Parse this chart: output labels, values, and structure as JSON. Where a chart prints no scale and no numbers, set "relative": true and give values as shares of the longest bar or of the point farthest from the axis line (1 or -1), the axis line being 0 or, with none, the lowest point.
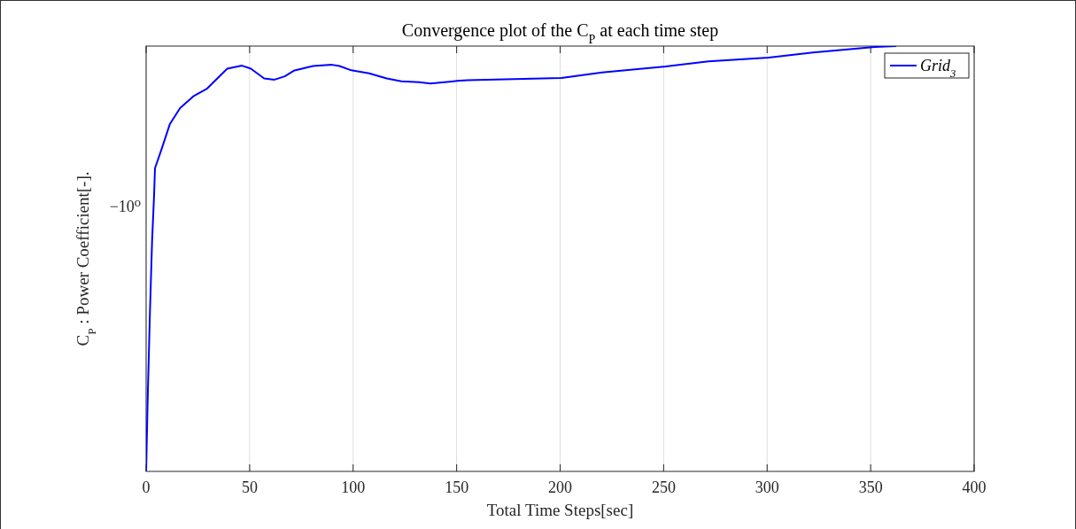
{
  "chart_data": {
    "type": "line",
    "title": "Convergence plot of the C$_{P}$ at each time step",
    "xlabel": "Total Time Steps[sec]",
    "ylabel": "C$_{P}$ : Power Coefficient[-].",
    "annotations": [
      "−10⁰"
    ],
    "relative": true,
    "xlim": [
      0,
      400
    ],
    "xticks": [
      0,
      50,
      100,
      150,
      200,
      250,
      300,
      350,
      400
    ],
    "grid": "x",
    "legend": "top right",
    "line_style": "solid",
    "marker": "none",
    "series": [
      {
        "name": "Grid$_{3}$",
        "color": "#0000ff",
        "x": [
          0,
          0.73,
          1.84,
          2.87,
          3.85,
          4.28,
          7.14,
          11.42,
          16.39,
          22.8,
          29.2,
          39.2,
          46.3,
          50.6,
          57.0,
          62.0,
          67.0,
          71.3,
          80.6,
          89.8,
          93.4,
          99.1,
          107.7,
          116.2,
          123.3,
          131.9,
          137.3,
          150.2,
          155.3,
          200.6,
          220.3,
          251.1,
          271.7,
          300.7,
          322.1,
          352.1,
          362.4
        ],
        "values": [
          0,
          0.165,
          0.373,
          0.54,
          0.65,
          0.713,
          0.753,
          0.816,
          0.854,
          0.882,
          0.899,
          0.947,
          0.954,
          0.947,
          0.924,
          0.921,
          0.929,
          0.942,
          0.953,
          0.956,
          0.953,
          0.943,
          0.936,
          0.924,
          0.917,
          0.915,
          0.912,
          0.918,
          0.92,
          0.925,
          0.938,
          0.952,
          0.964,
          0.973,
          0.985,
          0.998,
          1
        ]
      }
    ]
  }
}
